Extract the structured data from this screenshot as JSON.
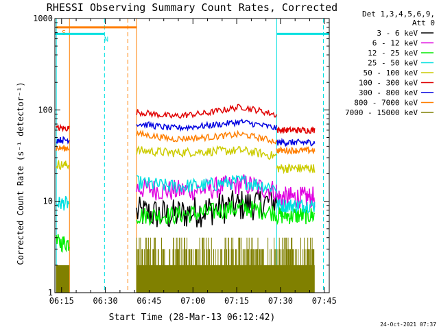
{
  "chart_data": {
    "type": "line",
    "title": "RHESSI Observing Summary Count Rates, Corrected",
    "xlabel": "Start Time (28-Mar-13 06:12:42)",
    "ylabel": "Corrected Count Rate (s⁻¹ detector⁻¹)",
    "ylog": true,
    "ylim": [
      1,
      1000
    ],
    "xlim_minutes": [
      0,
      94
    ],
    "x_ticks": [
      {
        "label": "06:15",
        "minute": 2.3
      },
      {
        "label": "06:30",
        "minute": 17.3
      },
      {
        "label": "06:45",
        "minute": 32.3
      },
      {
        "label": "07:00",
        "minute": 47.3
      },
      {
        "label": "07:15",
        "minute": 62.3
      },
      {
        "label": "07:30",
        "minute": 77.3
      },
      {
        "label": "07:45",
        "minute": 92.3
      }
    ],
    "y_ticks": [
      {
        "label": "1",
        "value": 1
      },
      {
        "label": "10",
        "value": 10
      },
      {
        "label": "100",
        "value": 100
      },
      {
        "label": "1000",
        "value": 1000
      }
    ],
    "legend_header": [
      "Det 1,3,4,5,6,9,",
      "Att 0"
    ],
    "legend_position": "right",
    "segments": [
      {
        "start": 0.5,
        "end": 5.0
      },
      {
        "start": 28.0,
        "end": 76.0,
        "step": 0.35
      },
      {
        "start": 76.0,
        "end": 89.0
      }
    ],
    "series": [
      {
        "name": "3 - 6 keV",
        "color": "#000000",
        "levels": [
          null,
          7.5,
          null
        ],
        "trend": [
          7.5,
          7.0,
          8.0,
          9.0,
          10.0
        ],
        "noise": 0.18
      },
      {
        "name": "6 - 12 keV",
        "color": "#e000e0",
        "levels": [
          null,
          14.0,
          11.0
        ],
        "trend": [
          14.0,
          13.0,
          13.5,
          15.5,
          13.0
        ],
        "noise": 0.12
      },
      {
        "name": "12 - 25 keV",
        "color": "#00ee00",
        "levels": [
          3.5,
          7.0,
          7.0
        ],
        "trend": [
          7.0,
          7.0,
          7.5,
          8.5,
          7.5
        ],
        "noise": 0.1
      },
      {
        "name": "25 - 50 keV",
        "color": "#00e0e0",
        "levels": [
          9.5,
          16.0,
          9.0
        ],
        "trend": [
          16.0,
          14.5,
          15.0,
          16.5,
          14.0
        ],
        "noise": 0.08
      },
      {
        "name": "50 - 100 keV",
        "color": "#cccc00",
        "levels": [
          25.0,
          36.0,
          23.0
        ],
        "trend": [
          36.0,
          34.0,
          35.0,
          36.0,
          31.0
        ],
        "noise": 0.05
      },
      {
        "name": "100 - 300 keV",
        "color": "#e00000",
        "levels": [
          63.0,
          95.0,
          60.0
        ],
        "trend": [
          95.0,
          85.0,
          92.0,
          108.0,
          88.0
        ],
        "noise": 0.035
      },
      {
        "name": "300 - 800 keV",
        "color": "#0000e0",
        "levels": [
          47.0,
          71.0,
          44.0
        ],
        "trend": [
          71.0,
          63.0,
          67.0,
          74.0,
          63.0
        ],
        "noise": 0.035
      },
      {
        "name": "800 - 7000 keV",
        "color": "#ff7f00",
        "levels": [
          38.0,
          55.0,
          36.0
        ],
        "trend": [
          55.0,
          48.0,
          50.0,
          54.0,
          45.0
        ],
        "noise": 0.035
      },
      {
        "name": "7000 - 15000 keV",
        "color": "#808000",
        "levels": [
          1.5,
          2.0,
          2.0
        ],
        "trend": [
          1.7,
          1.7,
          1.7,
          1.7,
          1.7
        ],
        "noise": 0.0
      }
    ],
    "flag_bars": [
      {
        "label": "S",
        "color": "#ff7f00",
        "x0": 0.5,
        "x1": 28.0,
        "y": 800
      },
      {
        "label": "N",
        "color": "#00e0e0",
        "x0": 0.0,
        "x1": 17.0,
        "y": 680
      },
      {
        "label": "",
        "color": "#00e0e0",
        "x0": 76.0,
        "x1": 94.0,
        "y": 680
      }
    ],
    "verticals": [
      {
        "minute": 0.5,
        "color": "#00e0e0",
        "dashed": false
      },
      {
        "minute": 5.0,
        "color": "#ff7f00",
        "dashed": false
      },
      {
        "minute": 17.0,
        "color": "#00e0e0",
        "dashed": true
      },
      {
        "minute": 25.0,
        "color": "#ff7f00",
        "dashed": true
      },
      {
        "minute": 28.0,
        "color": "#ff7f00",
        "dashed": false
      },
      {
        "minute": 76.0,
        "color": "#00e0e0",
        "dashed": false
      },
      {
        "minute": 92.0,
        "color": "#00e0e0",
        "dashed": true
      }
    ],
    "grid": false
  },
  "timestamp": "24-Oct-2021 07:37"
}
